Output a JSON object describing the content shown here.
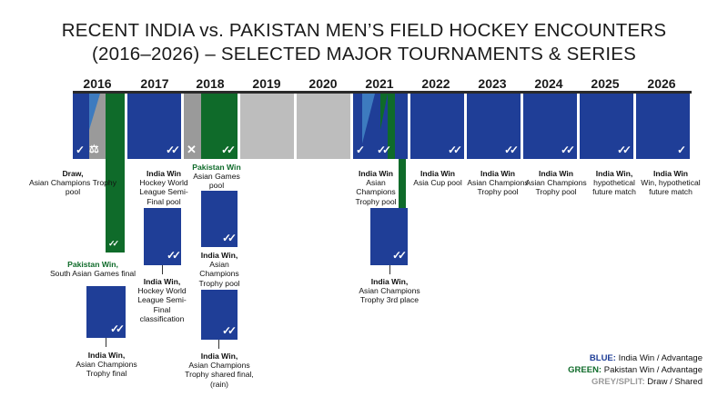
{
  "title_line1": "RECENT INDIA vs. PAKISTAN MEN’S FIELD HOCKEY ENCOUNTERS",
  "title_line2": "(2016–2026) – SELECTED MAJOR TOURNAMENTS & SERIES",
  "years": [
    "2016",
    "2017",
    "2018",
    "2019",
    "2020",
    "2021",
    "2022",
    "2023",
    "2024",
    "2025",
    "2026"
  ],
  "colors": {
    "blue": "#1f3e97",
    "green": "#0f6b2a",
    "grey": "#bdbdbd"
  },
  "icons": {
    "win": "check-icon",
    "draw": "scales-icon",
    "loss": "cross-icon"
  },
  "check_glyph": "✓",
  "double_check_glyph": "✓✓",
  "cross_glyph": "✕",
  "scales_glyph": "⚖",
  "labels": {
    "d2016_draw_title": "Draw,",
    "d2016_draw_desc": "Asian Champions Trophy pool",
    "d2016_pak_title": "Pakistan Win,",
    "d2016_pak_desc": "South Asian Games final",
    "d2016_ind_title": "India Win,",
    "d2016_ind_desc": "Asian Champions Trophy final",
    "d2017_a_title": "India Win",
    "d2017_a_desc": "Hockey World League Semi-Final pool",
    "d2017_b_title": "India Win,",
    "d2017_b_desc": "Hockey World League Semi-Final classification",
    "d2018_pak_title": "Pakistan Win",
    "d2018_pak_desc": "Asian Games pool",
    "d2018_b_title": "India Win,",
    "d2018_b_desc": "Asian Champions Trophy pool",
    "d2018_c_title": "India Win,",
    "d2018_c_desc": "Asian Champions Trophy shared final, (rain)",
    "d2021_a_title": "India Win",
    "d2021_a_desc": "Asian Champions Trophy pool",
    "d2021_b_title": "India Win,",
    "d2021_b_desc": "Asian Champions Trophy 3rd place",
    "d2022_title": "India Win",
    "d2022_desc": "Asia Cup pool",
    "d2023_title": "India Win",
    "d2023_desc": "Asian Champions Trophy pool",
    "d2024_title": "India Win",
    "d2024_desc": "Asian Champions Trophy pool",
    "d2025_title": "India Win,",
    "d2025_desc": "hypothetical future match",
    "d2026_title": "India Win",
    "d2026_desc": "Win, hypothetical future match"
  },
  "legend": {
    "blue_key": "BLUE:",
    "blue_text": "India Win / Advantage",
    "green_key": "GREEN:",
    "green_text": "Pakistan Win / Advantage",
    "grey_key": "GREY/SPLIT:",
    "grey_text": "Draw / Shared"
  }
}
